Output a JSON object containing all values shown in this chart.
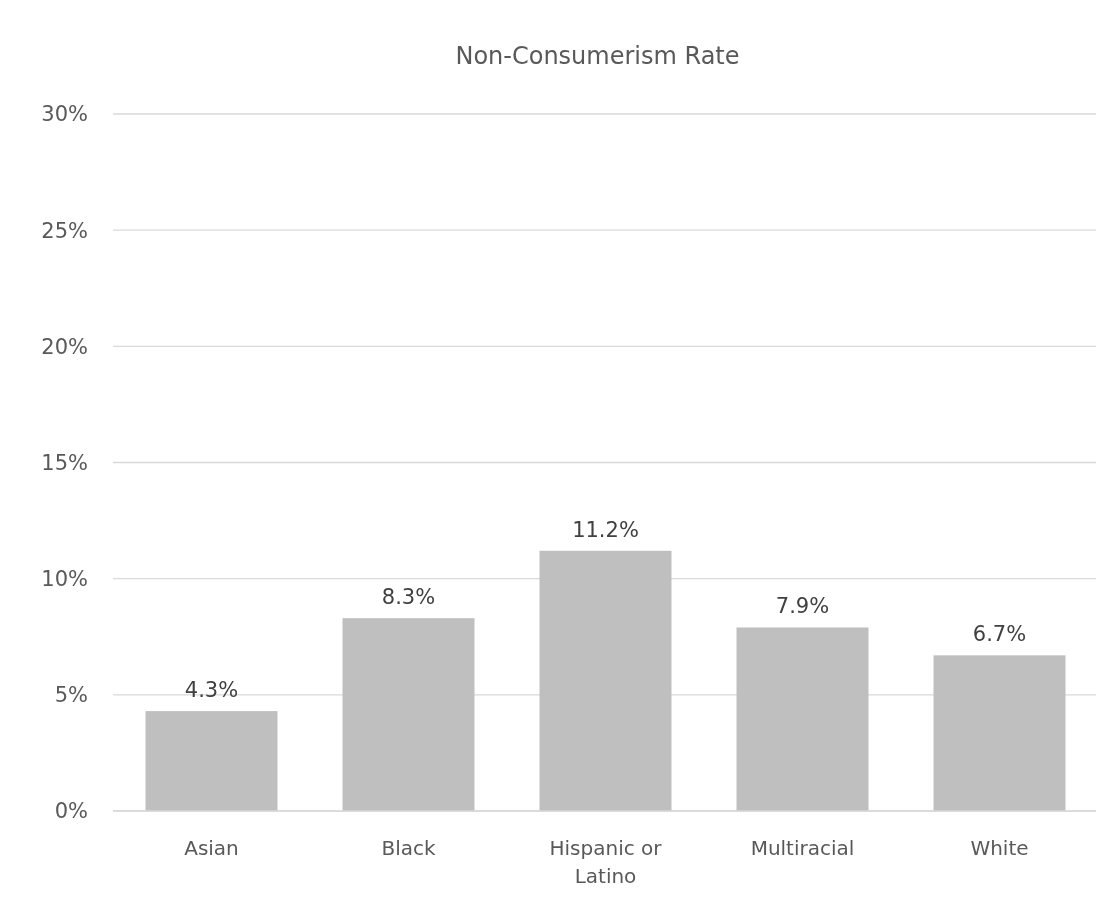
{
  "chart_data": {
    "type": "bar",
    "title": "Non-Consumerism Rate",
    "categories": [
      "Asian",
      "Black",
      "Hispanic or Latino",
      "Multiracial",
      "White"
    ],
    "values": [
      4.3,
      8.3,
      11.2,
      7.9,
      6.7
    ],
    "value_labels": [
      "4.3%",
      "8.3%",
      "11.2%",
      "7.9%",
      "6.7%"
    ],
    "color": "#bfbfbf",
    "ylim": [
      0,
      30
    ],
    "yticks": [
      {
        "value": 0,
        "label": "0%"
      },
      {
        "value": 5,
        "label": "5%"
      },
      {
        "value": 10,
        "label": "10%"
      },
      {
        "value": 15,
        "label": "15%"
      },
      {
        "value": 20,
        "label": "20%"
      },
      {
        "value": 25,
        "label": "25%"
      },
      {
        "value": 30,
        "label": "30%"
      }
    ],
    "grid": "y"
  }
}
